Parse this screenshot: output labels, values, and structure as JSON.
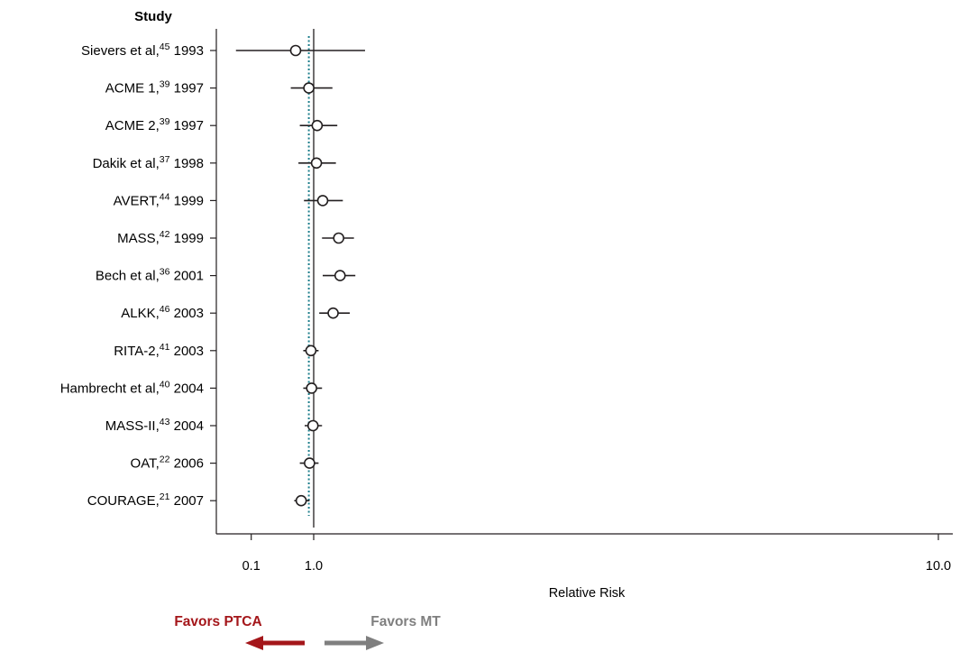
{
  "chart_data": {
    "type": "forest",
    "heading": "Study",
    "xlabel": "Relative Risk",
    "xlim": [
      0.1,
      10.0
    ],
    "xscale": "linear",
    "reference_value": 1.0,
    "pooled_estimate": 0.93,
    "xticks": [
      {
        "value": 0.1,
        "label": "0.1"
      },
      {
        "value": 1.0,
        "label": "1.0"
      },
      {
        "value": 10.0,
        "label": "10.0"
      }
    ],
    "studies": [
      {
        "name": "Sievers et al,",
        "ref": "45",
        "year": "1993",
        "rr": 0.74,
        "lo": -0.12,
        "hi": 1.74
      },
      {
        "name": "ACME 1,",
        "ref": "39",
        "year": "1997",
        "rr": 0.93,
        "lo": 0.67,
        "hi": 1.27
      },
      {
        "name": "ACME 2,",
        "ref": "39",
        "year": "1997",
        "rr": 1.05,
        "lo": 0.8,
        "hi": 1.34
      },
      {
        "name": "Dakik et al,",
        "ref": "37",
        "year": "1998",
        "rr": 1.04,
        "lo": 0.78,
        "hi": 1.32
      },
      {
        "name": "AVERT,",
        "ref": "44",
        "year": "1999",
        "rr": 1.13,
        "lo": 0.86,
        "hi": 1.42
      },
      {
        "name": "MASS,",
        "ref": "42",
        "year": "1999",
        "rr": 1.36,
        "lo": 1.12,
        "hi": 1.58
      },
      {
        "name": "Bech et al,",
        "ref": "36",
        "year": "2001",
        "rr": 1.38,
        "lo": 1.13,
        "hi": 1.6
      },
      {
        "name": "ALKK,",
        "ref": "46",
        "year": "2003",
        "rr": 1.28,
        "lo": 1.08,
        "hi": 1.52
      },
      {
        "name": "RITA-2,",
        "ref": "41",
        "year": "2003",
        "rr": 0.96,
        "lo": 0.85,
        "hi": 1.07
      },
      {
        "name": "Hambrecht et al,",
        "ref": "40",
        "year": "2004",
        "rr": 0.97,
        "lo": 0.85,
        "hi": 1.12
      },
      {
        "name": "MASS-II,",
        "ref": "43",
        "year": "2004",
        "rr": 0.99,
        "lo": 0.87,
        "hi": 1.12
      },
      {
        "name": "OAT,",
        "ref": "22",
        "year": "2006",
        "rr": 0.94,
        "lo": 0.8,
        "hi": 1.07
      },
      {
        "name": "COURAGE,",
        "ref": "21",
        "year": "2007",
        "rr": 0.82,
        "lo": 0.72,
        "hi": 0.94
      }
    ],
    "favors_left": "Favors PTCA",
    "favors_right": "Favors MT",
    "colors": {
      "ink": "#231f20",
      "pooled_line": "#1f7f8c",
      "favors_left": "#a4161a",
      "favors_right": "#7f7f7f"
    }
  }
}
